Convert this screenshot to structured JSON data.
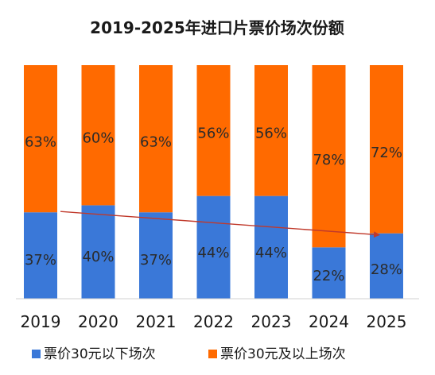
{
  "chart_data": {
    "type": "bar",
    "stacked": true,
    "percent": true,
    "title": "2019-2025年进口片票价场次份额",
    "categories": [
      "2019",
      "2020",
      "2021",
      "2022",
      "2023",
      "2024",
      "2025"
    ],
    "series": [
      {
        "name": "票价30元以下场次",
        "values": [
          37,
          40,
          37,
          44,
          44,
          22,
          28
        ],
        "labels": [
          "37%",
          "40%",
          "37%",
          "44%",
          "44%",
          "22%",
          "28%"
        ],
        "color": "#3a78d8"
      },
      {
        "name": "票价30元及以上场次",
        "values": [
          63,
          60,
          63,
          56,
          56,
          78,
          72
        ],
        "labels": [
          "63%",
          "60%",
          "63%",
          "56%",
          "56%",
          "78%",
          "72%"
        ],
        "color": "#ff6a00"
      }
    ],
    "ylim": [
      0,
      100
    ],
    "grid": false,
    "legend": "bottom",
    "trend_arrow": {
      "from": "2019",
      "to": "2025",
      "color": "#c0392b"
    }
  }
}
